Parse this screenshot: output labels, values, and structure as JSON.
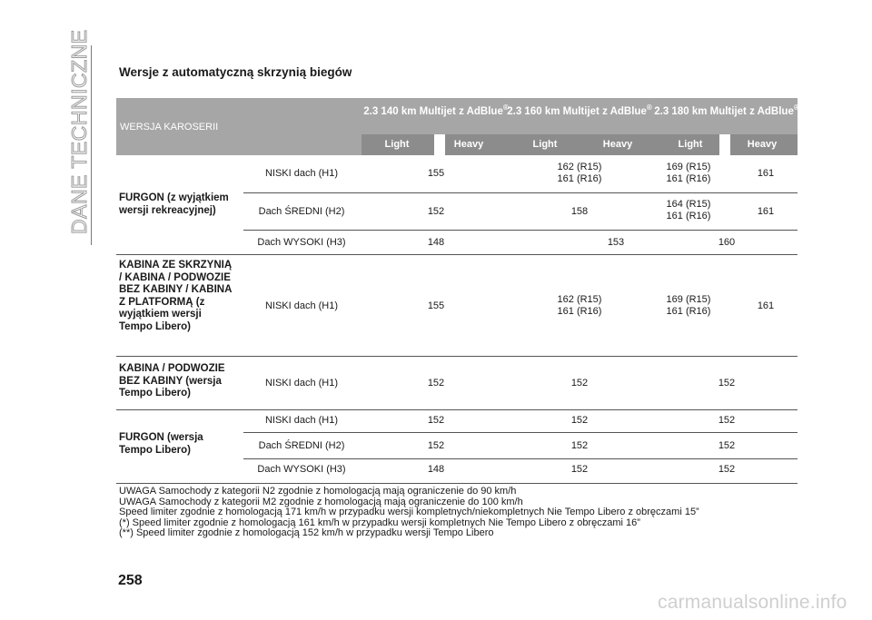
{
  "side_title": "DANE TECHNICZNE",
  "heading": "Wersje z automatyczną skrzynią biegów",
  "table": {
    "header_left": "WERSJA KAROSERII",
    "versions": [
      {
        "label": "2.3 140 km Multijet z AdBlue",
        "reg": "®"
      },
      {
        "label": "2.3 160 km Multijet z AdBlue",
        "reg": "®"
      },
      {
        "label": "2.3 180 km Multijet z AdBlue",
        "reg": "®"
      }
    ],
    "subheaders": [
      "Light",
      "Heavy",
      "Light",
      "Heavy",
      "Light",
      "Heavy"
    ],
    "groups": [
      {
        "label": "FURGON (z wyjątkiem wersji rekreacyjnej)",
        "rows": [
          {
            "roof": "NISKI dach (H1)",
            "v140": "155",
            "v160": "162 (R15)\n161 (R16)",
            "v180l": "169 (R15)\n161 (R16)",
            "v180h": "161"
          },
          {
            "roof": "Dach ŚREDNI (H2)",
            "v140": "152",
            "v160": "158",
            "v180l": "164 (R15)\n161 (R16)",
            "v180h": "161"
          },
          {
            "roof": "Dach WYSOKI (H3)",
            "v140": "148",
            "v160": "153",
            "v180": "160"
          }
        ]
      },
      {
        "label": "KABINA ZE SKRZYNIĄ / KABINA / PODWOZIE BEZ KABINY / KABINA Z PLATFORMĄ (z wyjątkiem wersji Tempo Libero)",
        "rows": [
          {
            "roof": "NISKI dach (H1)",
            "v140": "155",
            "v160": "162 (R15)\n161 (R16)",
            "v180l": "169 (R15)\n161 (R16)",
            "v180h": "161"
          }
        ]
      },
      {
        "label": "KABINA / PODWOZIE BEZ KABINY (wersja Tempo Libero)",
        "rows": [
          {
            "roof": "NISKI dach (H1)",
            "v140": "152",
            "v160": "152",
            "v180": "152"
          }
        ]
      },
      {
        "label": "FURGON (wersja Tempo Libero)",
        "rows": [
          {
            "roof": "NISKI dach (H1)",
            "v140": "152",
            "v160": "152",
            "v180": "152"
          },
          {
            "roof": "Dach ŚREDNI (H2)",
            "v140": "152",
            "v160": "152",
            "v180": "152"
          },
          {
            "roof": "Dach WYSOKI (H3)",
            "v140": "148",
            "v160": "152",
            "v180": "152"
          }
        ]
      }
    ]
  },
  "notes": [
    "UWAGA Samochody z kategorii N2 zgodnie z homologacją mają ograniczenie do 90 km/h",
    "UWAGA Samochody z kategorii M2 zgodnie z homologacją mają ograniczenie do 100 km/h",
    "Speed limiter zgodnie z homologacją 171 km/h w przypadku wersji kompletnych/niekompletnych Nie Tempo Libero z obręczami 15”",
    "(*) Speed limiter zgodnie z homologacją 161 km/h w przypadku wersji kompletnych Nie Tempo Libero z obręczami 16”",
    "(**) Speed limiter zgodnie z homologacją 152 km/h w przypadku wersji Tempo Libero"
  ],
  "page_number": "258",
  "watermark": "carmanualsonline.info"
}
